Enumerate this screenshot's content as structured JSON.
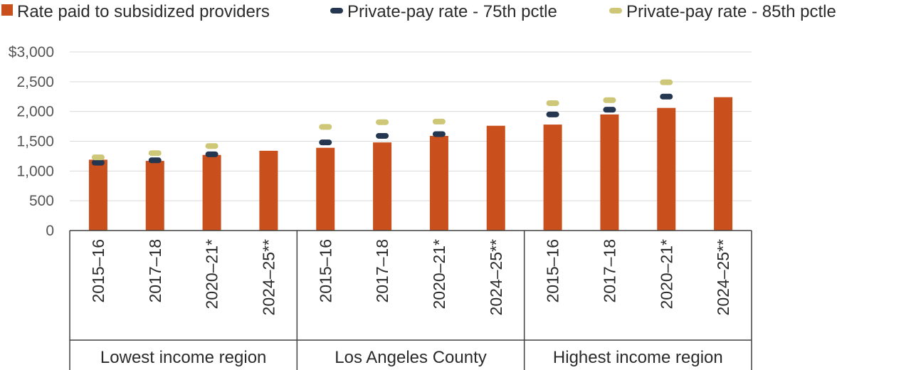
{
  "chart_data": {
    "type": "bar",
    "title": "",
    "xlabel": "",
    "ylabel": "",
    "ylim": [
      0,
      3000
    ],
    "yticks": [
      0,
      500,
      1000,
      1500,
      2000,
      2500,
      3000
    ],
    "ytick_labels": [
      "0",
      "500",
      "1,000",
      "1,500",
      "2,000",
      "2,500",
      "$3,000"
    ],
    "grid": true,
    "legend_position": "top",
    "groups": [
      {
        "label": "Lowest income region",
        "categories": [
          "2015–16",
          "2017–18",
          "2020–21*",
          "2024–25**"
        ]
      },
      {
        "label": "Los Angeles County",
        "categories": [
          "2015–16",
          "2017–18",
          "2020–21*",
          "2024–25**"
        ]
      },
      {
        "label": "Highest income region",
        "categories": [
          "2015–16",
          "2017–18",
          "2020–21*",
          "2024–25**"
        ]
      }
    ],
    "series": [
      {
        "name": "Rate paid to subsidized providers",
        "kind": "bar",
        "color": "#c94f1c",
        "values": [
          1190,
          1170,
          1270,
          1340,
          1390,
          1480,
          1590,
          1760,
          1780,
          1950,
          2060,
          2240
        ]
      },
      {
        "name": "Private-pay rate - 75th pctle",
        "kind": "marker",
        "color": "#243650",
        "values": [
          1140,
          1180,
          1280,
          null,
          1480,
          1590,
          1620,
          null,
          1950,
          2030,
          2250,
          null
        ]
      },
      {
        "name": "Private-pay rate - 85th pctle",
        "kind": "marker",
        "color": "#cdc777",
        "values": [
          1230,
          1300,
          1420,
          null,
          1740,
          1820,
          1830,
          null,
          2140,
          2190,
          2490,
          null
        ]
      }
    ]
  }
}
